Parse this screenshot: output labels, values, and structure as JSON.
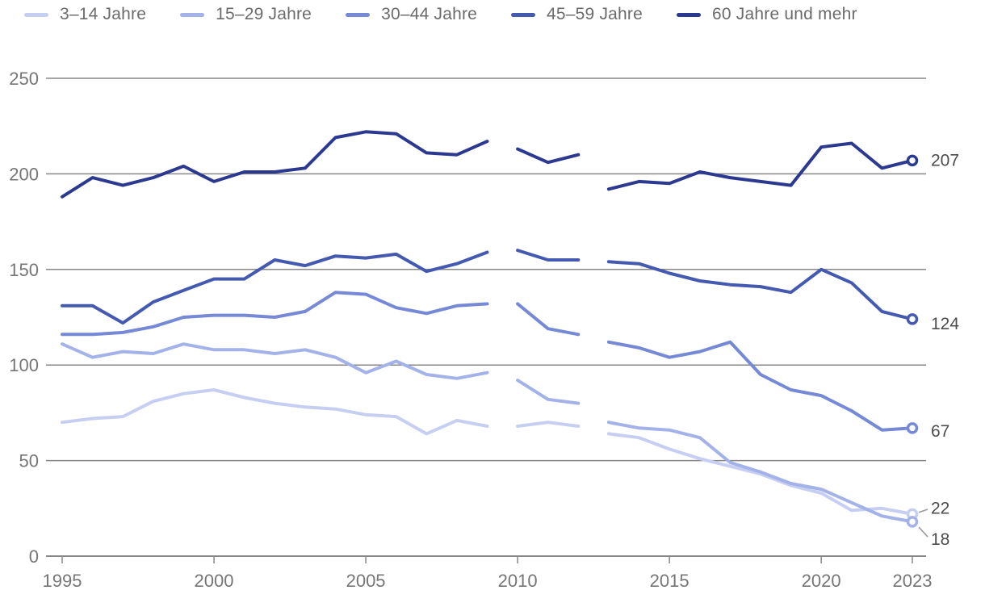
{
  "chart_data": {
    "type": "line",
    "title": "",
    "legend_position": "top",
    "grid": true,
    "grid_color": "#878787",
    "axis_text_color": "#767676",
    "end_label_color": "#4c4c4c",
    "leader_color": "#9a9a9a",
    "xlim": [
      1995,
      2023
    ],
    "ylim": [
      0,
      250
    ],
    "x": [
      1995,
      1996,
      1997,
      1998,
      1999,
      2000,
      2001,
      2002,
      2003,
      2004,
      2005,
      2006,
      2007,
      2008,
      2009,
      2010,
      2011,
      2012,
      2013,
      2014,
      2015,
      2016,
      2017,
      2018,
      2019,
      2020,
      2021,
      2022,
      2023
    ],
    "x_ticks": [
      1995,
      2000,
      2005,
      2010,
      2015,
      2020,
      2023
    ],
    "x_tick_labels": [
      "1995",
      "2000",
      "2005",
      "2010",
      "2015",
      "2020",
      "2023"
    ],
    "y_ticks": [
      0,
      50,
      100,
      150,
      200,
      250
    ],
    "y_tick_labels": [
      "0",
      "50",
      "100",
      "150",
      "200",
      "250"
    ],
    "segments": [
      [
        1995,
        2009
      ],
      [
        2010,
        2012
      ],
      [
        2013,
        2023
      ]
    ],
    "series": [
      {
        "name": "3–14 Jahre",
        "color": "#c6cff2",
        "end_label": "22",
        "end_label_dy": -7,
        "values": [
          70,
          72,
          73,
          81,
          85,
          87,
          83,
          80,
          78,
          77,
          74,
          73,
          64,
          71,
          68,
          68,
          70,
          68,
          64,
          62,
          56,
          51,
          47,
          43,
          37,
          33,
          24,
          25,
          22
        ]
      },
      {
        "name": "15–29 Jahre",
        "color": "#a3b2e8",
        "end_label": "18",
        "end_label_dy": 22,
        "values": [
          111,
          104,
          107,
          106,
          111,
          108,
          108,
          106,
          108,
          104,
          96,
          102,
          95,
          93,
          96,
          92,
          82,
          80,
          70,
          67,
          66,
          62,
          49,
          44,
          38,
          35,
          28,
          21,
          18
        ]
      },
      {
        "name": "30–44 Jahre",
        "color": "#7589d6",
        "end_label": "67",
        "end_label_dy": 4,
        "values": [
          116,
          116,
          117,
          120,
          125,
          126,
          126,
          125,
          128,
          138,
          137,
          130,
          127,
          131,
          132,
          132,
          119,
          116,
          112,
          109,
          104,
          107,
          112,
          95,
          87,
          84,
          76,
          66,
          67
        ]
      },
      {
        "name": "45–59 Jahre",
        "color": "#4459b0",
        "end_label": "124",
        "end_label_dy": 6,
        "values": [
          131,
          131,
          122,
          133,
          139,
          145,
          145,
          155,
          152,
          157,
          156,
          158,
          149,
          153,
          159,
          160,
          155,
          155,
          154,
          153,
          148,
          144,
          142,
          141,
          138,
          150,
          143,
          128,
          124
        ]
      },
      {
        "name": "60 Jahre und mehr",
        "color": "#2b3990",
        "end_label": "207",
        "end_label_dy": 0,
        "values": [
          188,
          198,
          194,
          198,
          204,
          196,
          201,
          201,
          203,
          219,
          222,
          221,
          211,
          210,
          217,
          213,
          206,
          210,
          192,
          196,
          195,
          201,
          198,
          196,
          194,
          214,
          216,
          203,
          207
        ]
      }
    ]
  }
}
